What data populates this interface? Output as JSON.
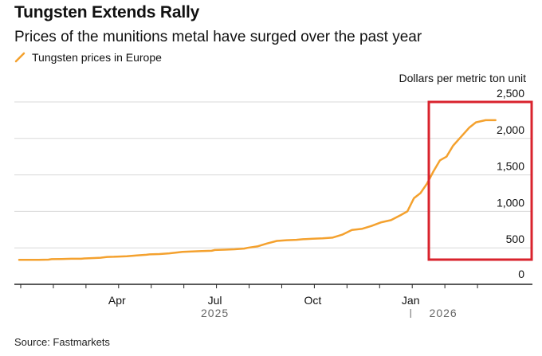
{
  "chart_data": {
    "type": "line",
    "title": "Tungsten Extends Rally",
    "subtitle": "Prices of the munitions metal have surged over the past year",
    "legend": [
      "Tungsten prices in Europe"
    ],
    "ylabel": "Dollars per metric ton unit",
    "ylim": [
      0,
      2500
    ],
    "yticks": [
      "2,500",
      "2,000",
      "1,500",
      "1,000",
      "500",
      "0"
    ],
    "ytick_values": [
      2500,
      2000,
      1500,
      1000,
      500,
      0
    ],
    "xtick_labels": [
      "Apr",
      "Jul",
      "Oct",
      "Jan"
    ],
    "xtick_values": [
      3,
      6,
      9,
      12
    ],
    "year_labels": [
      "2025",
      "2026"
    ],
    "year_label_values": [
      6,
      13
    ],
    "year_divider_value": 12,
    "xlim": [
      0,
      15
    ],
    "series": [
      {
        "name": "Tungsten prices in Europe",
        "color": "#f4a12e",
        "x": [
          0,
          0.3,
          0.6,
          0.9,
          1.0,
          1.3,
          1.6,
          1.9,
          2.0,
          2.3,
          2.5,
          2.7,
          2.9,
          3.0,
          3.3,
          3.6,
          3.9,
          4.0,
          4.3,
          4.6,
          4.9,
          5.0,
          5.3,
          5.6,
          5.9,
          6.0,
          6.3,
          6.6,
          6.9,
          7.0,
          7.3,
          7.6,
          7.9,
          8.2,
          8.5,
          8.7,
          9.0,
          9.3,
          9.6,
          9.9,
          10.2,
          10.5,
          10.8,
          11.1,
          11.4,
          11.7,
          11.9,
          12.1,
          12.3,
          12.5,
          12.7,
          12.9,
          13.1,
          13.3,
          13.5,
          13.8,
          14.0,
          14.3,
          14.6
        ],
        "values": [
          335,
          335,
          335,
          338,
          345,
          347,
          350,
          350,
          355,
          360,
          365,
          375,
          378,
          380,
          385,
          395,
          405,
          410,
          415,
          425,
          440,
          445,
          450,
          455,
          460,
          470,
          475,
          480,
          490,
          500,
          520,
          560,
          595,
          605,
          610,
          618,
          625,
          630,
          640,
          680,
          745,
          760,
          800,
          850,
          880,
          950,
          1000,
          1180,
          1250,
          1380,
          1550,
          1700,
          1750,
          1900,
          2000,
          2150,
          2220,
          2250,
          2250
        ]
      }
    ]
  },
  "source": "Source: Fastmarkets",
  "colors": {
    "line": "#f4a12e",
    "highlight_box": "#d9232d",
    "grid": "#d8d8d8",
    "axis": "#222222"
  }
}
